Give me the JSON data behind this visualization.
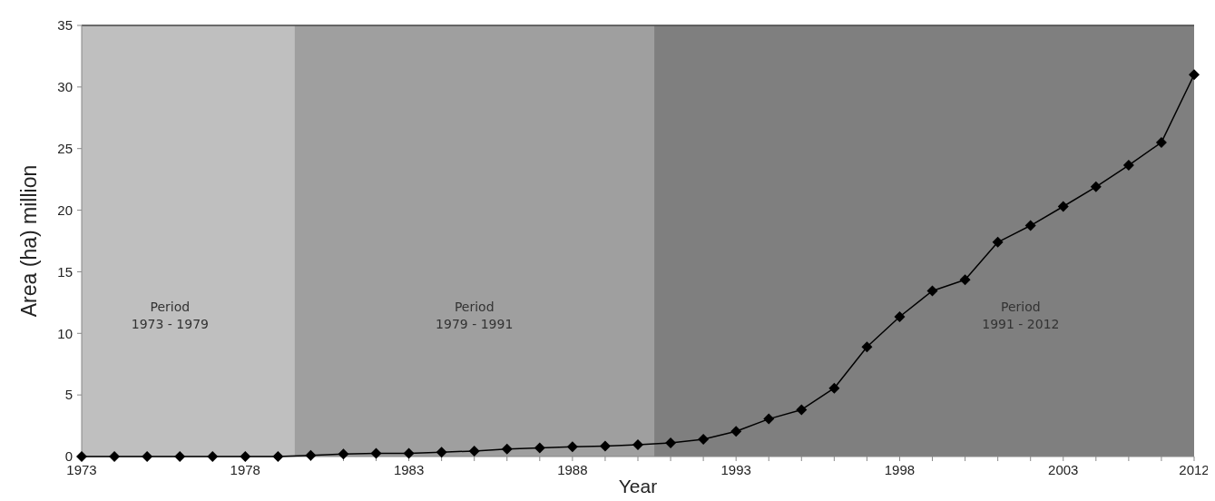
{
  "chart_data": {
    "type": "line",
    "xlabel": "Year",
    "ylabel": "Area (ha) million",
    "categories": [
      "1973",
      null,
      null,
      null,
      null,
      "1978",
      null,
      null,
      null,
      null,
      "1983",
      null,
      null,
      null,
      null,
      "1988",
      null,
      null,
      null,
      null,
      "1993",
      null,
      null,
      null,
      null,
      "1998",
      null,
      null,
      null,
      null,
      "2003",
      null,
      null,
      null,
      "2012"
    ],
    "series": [
      {
        "color": "#000000",
        "values": [
          0,
          0,
          0,
          0,
          0,
          0,
          0,
          0.1,
          0.2,
          0.25,
          0.25,
          0.35,
          0.45,
          0.6,
          0.7,
          0.8,
          0.85,
          0.95,
          1.1,
          1.4,
          2.05,
          3.05,
          3.8,
          5.55,
          8.9,
          11.35,
          13.45,
          14.35,
          17.4,
          18.75,
          20.3,
          21.9,
          23.65,
          25.5,
          31
        ]
      }
    ],
    "ylim": [
      0,
      35
    ],
    "yticks": [
      0,
      5,
      10,
      15,
      20,
      25,
      30,
      35
    ],
    "marker": "diamond",
    "line_style": "solid",
    "annotations": [
      "Period\n1973 - 1979",
      "Period\n1979 - 1991",
      "Period\n1991 - 2012"
    ]
  }
}
